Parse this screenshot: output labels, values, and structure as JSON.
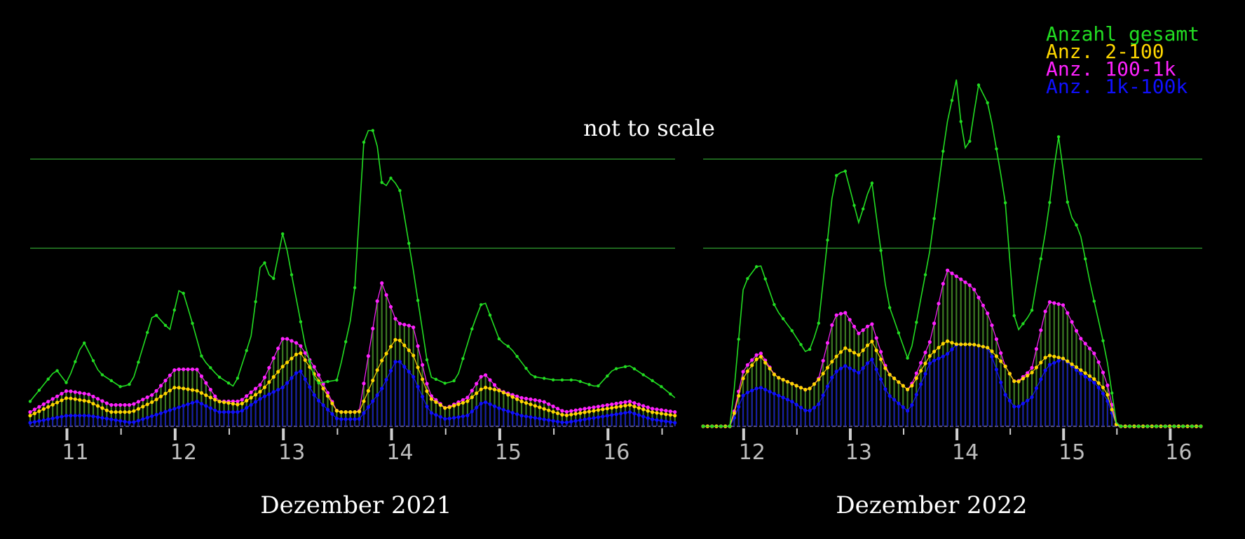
{
  "annotation": "not to scale",
  "legend": [
    {
      "label": "Anzahl gesamt",
      "color": "#22dd22"
    },
    {
      "label": "Anz. 2-100",
      "color": "#ffd700"
    },
    {
      "label": "Anz. 100-1k",
      "color": "#ff22ff"
    },
    {
      "label": "Anz. 1k-100k",
      "color": "#1010ff"
    }
  ],
  "chart_data": [
    {
      "type": "line",
      "title": "Dezember 2021",
      "xlim": [
        10.66,
        16.62
      ],
      "ylim": [
        0,
        100
      ],
      "ticks": [
        11,
        12,
        13,
        14,
        15,
        16
      ],
      "reference_lines": [
        50,
        75
      ],
      "series": [
        {
          "name": "Anzahl gesamt",
          "color": "#22dd22",
          "x": [
            10.66,
            10.9,
            11.0,
            11.15,
            11.3,
            11.5,
            11.6,
            11.8,
            11.95,
            12.05,
            12.15,
            12.25,
            12.4,
            12.55,
            12.7,
            12.8,
            12.9,
            13.0,
            13.08,
            13.2,
            13.3,
            13.5,
            13.65,
            13.75,
            13.85,
            13.92,
            14.0,
            14.08,
            14.2,
            14.35,
            14.5,
            14.6,
            14.75,
            14.85,
            15.0,
            15.1,
            15.3,
            15.5,
            15.7,
            15.9,
            16.05,
            16.2,
            16.35,
            16.5,
            16.62
          ],
          "values": [
            7,
            16,
            12,
            24,
            15,
            11,
            12,
            32,
            27,
            40,
            30,
            19,
            14,
            11,
            25,
            48,
            40,
            55,
            42,
            23,
            12,
            13,
            34,
            83,
            83,
            66,
            70,
            66,
            44,
            14,
            12,
            13,
            28,
            36,
            24,
            22,
            14,
            13,
            13,
            11,
            16,
            17,
            14,
            11,
            8
          ]
        },
        {
          "name": "Anz. 2-100",
          "color": "#ffd700",
          "x": [
            10.66,
            11.0,
            11.2,
            11.4,
            11.6,
            11.8,
            12.0,
            12.2,
            12.4,
            12.6,
            12.8,
            13.0,
            13.15,
            13.3,
            13.5,
            13.7,
            13.9,
            14.05,
            14.2,
            14.35,
            14.5,
            14.7,
            14.85,
            15.0,
            15.2,
            15.4,
            15.6,
            15.8,
            16.0,
            16.2,
            16.4,
            16.62
          ],
          "values": [
            3,
            8,
            7,
            4,
            4,
            7,
            11,
            10,
            7,
            6,
            10,
            17,
            21,
            14,
            4,
            4,
            18,
            25,
            20,
            8,
            5,
            7,
            11,
            10,
            7,
            5,
            3,
            4,
            5,
            6,
            4,
            3
          ]
        },
        {
          "name": "Anz. 100-1k",
          "color": "#ff22ff",
          "x": [
            10.66,
            11.0,
            11.2,
            11.4,
            11.6,
            11.8,
            12.0,
            12.2,
            12.4,
            12.6,
            12.8,
            13.0,
            13.15,
            13.3,
            13.5,
            13.7,
            13.9,
            14.05,
            14.2,
            14.35,
            14.5,
            14.7,
            14.85,
            15.0,
            15.2,
            15.4,
            15.6,
            15.8,
            16.0,
            16.2,
            16.4,
            16.62
          ],
          "values": [
            4,
            10,
            9,
            6,
            6,
            9,
            16,
            16,
            7,
            7,
            12,
            25,
            23,
            16,
            4,
            4,
            41,
            29,
            28,
            9,
            5,
            8,
            15,
            10,
            8,
            7,
            4,
            5,
            6,
            7,
            5,
            4
          ]
        },
        {
          "name": "Anz. 1k-100k",
          "color": "#1010ff",
          "x": [
            10.66,
            11.0,
            11.2,
            11.4,
            11.6,
            11.8,
            12.0,
            12.2,
            12.4,
            12.6,
            12.8,
            13.0,
            13.15,
            13.3,
            13.5,
            13.7,
            13.9,
            14.05,
            14.2,
            14.35,
            14.5,
            14.7,
            14.85,
            15.0,
            15.2,
            15.4,
            15.6,
            15.8,
            16.0,
            16.2,
            16.4,
            16.62
          ],
          "values": [
            1,
            3,
            3,
            2,
            1,
            3,
            5,
            7,
            4,
            4,
            8,
            11,
            16,
            8,
            2,
            2,
            10,
            19,
            14,
            4,
            2,
            3,
            7,
            5,
            3,
            2,
            1,
            2,
            3,
            4,
            2,
            1
          ]
        }
      ]
    },
    {
      "type": "line",
      "title": "Dezember 2022",
      "xlim": [
        11.62,
        16.3
      ],
      "ylim": [
        0,
        100
      ],
      "ticks": [
        12,
        13,
        14,
        15,
        16
      ],
      "reference_lines": [
        50,
        75
      ],
      "series": [
        {
          "name": "Anzahl gesamt",
          "color": "#22dd22",
          "x": [
            11.62,
            11.88,
            12.0,
            12.15,
            12.3,
            12.45,
            12.6,
            12.7,
            12.85,
            12.95,
            13.08,
            13.2,
            13.35,
            13.55,
            13.75,
            13.9,
            14.0,
            14.05,
            14.1,
            14.2,
            14.3,
            14.45,
            14.55,
            14.7,
            14.85,
            14.95,
            15.05,
            15.15,
            15.25,
            15.4,
            15.5,
            16.3
          ],
          "values": [
            0,
            0,
            40,
            46,
            33,
            27,
            20,
            28,
            70,
            72,
            57,
            69,
            35,
            18,
            50,
            84,
            98,
            81,
            76,
            96,
            90,
            64,
            26,
            32,
            58,
            82,
            60,
            55,
            40,
            20,
            0,
            0
          ]
        },
        {
          "name": "Anz. 2-100",
          "color": "#ffd700",
          "x": [
            11.62,
            11.88,
            12.0,
            12.15,
            12.3,
            12.45,
            12.6,
            12.7,
            12.85,
            12.95,
            13.08,
            13.2,
            13.35,
            13.55,
            13.75,
            13.9,
            14.0,
            14.15,
            14.3,
            14.45,
            14.55,
            14.7,
            14.85,
            15.0,
            15.15,
            15.3,
            15.4,
            15.5,
            16.3
          ],
          "values": [
            0,
            0,
            14,
            20,
            14,
            12,
            10,
            13,
            19,
            22,
            20,
            24,
            15,
            10,
            20,
            24,
            23,
            23,
            22,
            17,
            12,
            15,
            20,
            19,
            16,
            13,
            10,
            0,
            0
          ]
        },
        {
          "name": "Anz. 100-1k",
          "color": "#ff22ff",
          "x": [
            11.62,
            11.88,
            12.0,
            12.15,
            12.3,
            12.45,
            12.6,
            12.7,
            12.85,
            12.95,
            13.08,
            13.2,
            13.35,
            13.55,
            13.75,
            13.9,
            14.0,
            14.15,
            14.3,
            14.45,
            14.55,
            14.7,
            14.85,
            15.0,
            15.15,
            15.3,
            15.4,
            15.5,
            16.3
          ],
          "values": [
            0,
            0,
            16,
            21,
            14,
            12,
            10,
            13,
            31,
            32,
            26,
            29,
            15,
            10,
            24,
            44,
            42,
            39,
            31,
            17,
            12,
            16,
            35,
            34,
            25,
            20,
            13,
            0,
            0
          ]
        },
        {
          "name": "Anz. 1k-100k",
          "color": "#1010ff",
          "x": [
            11.62,
            11.88,
            12.0,
            12.15,
            12.3,
            12.45,
            12.6,
            12.7,
            12.85,
            12.95,
            13.08,
            13.2,
            13.35,
            13.55,
            13.75,
            13.9,
            14.0,
            14.15,
            14.3,
            14.45,
            14.55,
            14.7,
            14.85,
            15.0,
            15.15,
            15.3,
            15.4,
            15.5,
            16.3
          ],
          "values": [
            0,
            0,
            9,
            11,
            9,
            7,
            4,
            6,
            15,
            17,
            15,
            19,
            9,
            4,
            18,
            20,
            23,
            23,
            22,
            9,
            5,
            8,
            17,
            19,
            15,
            12,
            8,
            0,
            0
          ]
        }
      ]
    }
  ]
}
